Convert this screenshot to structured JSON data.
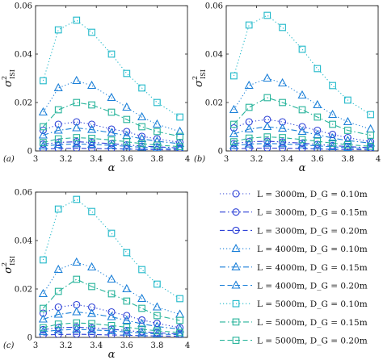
{
  "colors": {
    "blue_dark": "#2b3fd6",
    "blue_mid": "#1a7fd8",
    "cyan": "#1fb8c9",
    "teal": "#26b39a"
  },
  "legend": {
    "entries": [
      {
        "series": 0,
        "label": "L = 3000m, D_G = 0.10m"
      },
      {
        "series": 1,
        "label": "L = 3000m, D_G = 0.15m"
      },
      {
        "series": 2,
        "label": "L = 3000m, D_G = 0.20m"
      },
      {
        "series": 3,
        "label": "L = 4000m, D_G = 0.10m"
      },
      {
        "series": 4,
        "label": "L = 4000m, D_G = 0.15m"
      },
      {
        "series": 5,
        "label": "L = 4000m, D_G = 0.20m"
      },
      {
        "series": 6,
        "label": "L = 5000m, D_G = 0.10m"
      },
      {
        "series": 7,
        "label": "L = 5000m, D_G = 0.15m"
      },
      {
        "series": 8,
        "label": "L = 5000m, D_G = 0.20m"
      }
    ]
  },
  "chart_data": [
    {
      "type": "line",
      "panel_label": "(a)",
      "xlabel": "α",
      "ylabel": "σ²_ISI",
      "xlim": [
        3,
        4
      ],
      "ylim": [
        0,
        0.06
      ],
      "xticks": [
        "3",
        "3.2",
        "3.4",
        "3.6",
        "3.8",
        "4"
      ],
      "yticks": [
        "0",
        "0.02",
        "0.04",
        "0.06"
      ],
      "x": [
        3.05,
        3.15,
        3.27,
        3.37,
        3.5,
        3.6,
        3.7,
        3.8,
        3.95
      ],
      "series": [
        {
          "name": "L = 3000m, D_G = 0.10m",
          "marker": "circle",
          "dash": "dotted",
          "color": "#2b3fd6",
          "values": [
            0.0085,
            0.011,
            0.012,
            0.011,
            0.009,
            0.008,
            0.006,
            0.005,
            0.0035
          ]
        },
        {
          "name": "L = 3000m, D_G = 0.15m",
          "marker": "circle",
          "dash": "dashdot",
          "color": "#2b3fd6",
          "values": [
            0.0028,
            0.0035,
            0.0038,
            0.0035,
            0.003,
            0.0025,
            0.002,
            0.0017,
            0.0012
          ]
        },
        {
          "name": "L = 3000m, D_G = 0.20m",
          "marker": "circle",
          "dash": "dashed",
          "color": "#2b3fd6",
          "values": [
            0.0008,
            0.001,
            0.0011,
            0.001,
            0.0009,
            0.0008,
            0.0006,
            0.0005,
            0.0004
          ]
        },
        {
          "name": "L = 4000m, D_G = 0.10m",
          "marker": "triangle",
          "dash": "dotted",
          "color": "#1a7fd8",
          "values": [
            0.016,
            0.026,
            0.029,
            0.027,
            0.022,
            0.018,
            0.014,
            0.011,
            0.008
          ]
        },
        {
          "name": "L = 4000m, D_G = 0.15m",
          "marker": "triangle",
          "dash": "dashdot",
          "color": "#1a7fd8",
          "values": [
            0.0065,
            0.0085,
            0.0095,
            0.0088,
            0.0075,
            0.0063,
            0.005,
            0.004,
            0.003
          ]
        },
        {
          "name": "L = 4000m, D_G = 0.20m",
          "marker": "triangle",
          "dash": "dashed",
          "color": "#1a7fd8",
          "values": [
            0.002,
            0.0026,
            0.0029,
            0.0027,
            0.0023,
            0.0019,
            0.0015,
            0.0012,
            0.0009
          ]
        },
        {
          "name": "L = 5000m, D_G = 0.10m",
          "marker": "square",
          "dash": "dotted",
          "color": "#1fb8c9",
          "values": [
            0.029,
            0.05,
            0.054,
            0.049,
            0.04,
            0.032,
            0.026,
            0.02,
            0.014
          ]
        },
        {
          "name": "L = 5000m, D_G = 0.15m",
          "marker": "square",
          "dash": "dashdot",
          "color": "#26b39a",
          "values": [
            0.01,
            0.017,
            0.02,
            0.019,
            0.016,
            0.013,
            0.01,
            0.008,
            0.006
          ]
        },
        {
          "name": "L = 5000m, D_G = 0.20m",
          "marker": "square",
          "dash": "dashed",
          "color": "#26b39a",
          "values": [
            0.0035,
            0.005,
            0.0055,
            0.0052,
            0.0045,
            0.0038,
            0.003,
            0.0024,
            0.0018
          ]
        }
      ]
    },
    {
      "type": "line",
      "panel_label": "(b)",
      "xlabel": "α",
      "ylabel": "σ²_ISI",
      "xlim": [
        3,
        4
      ],
      "ylim": [
        0,
        0.06
      ],
      "xticks": [
        "3",
        "3.2",
        "3.4",
        "3.6",
        "3.8",
        "4"
      ],
      "yticks": [
        "0",
        "0.02",
        "0.04",
        "0.06"
      ],
      "x": [
        3.05,
        3.15,
        3.27,
        3.37,
        3.5,
        3.6,
        3.7,
        3.8,
        3.95
      ],
      "series": [
        {
          "name": "L = 3000m, D_G = 0.10m",
          "marker": "circle",
          "dash": "dotted",
          "color": "#2b3fd6",
          "values": [
            0.0095,
            0.012,
            0.013,
            0.012,
            0.01,
            0.0085,
            0.0068,
            0.0055,
            0.0038
          ]
        },
        {
          "name": "L = 3000m, D_G = 0.15m",
          "marker": "circle",
          "dash": "dashdot",
          "color": "#2b3fd6",
          "values": [
            0.003,
            0.0038,
            0.004,
            0.0037,
            0.0032,
            0.0027,
            0.0022,
            0.0018,
            0.0013
          ]
        },
        {
          "name": "L = 3000m, D_G = 0.20m",
          "marker": "circle",
          "dash": "dashed",
          "color": "#2b3fd6",
          "values": [
            0.0009,
            0.0011,
            0.0012,
            0.0011,
            0.001,
            0.0008,
            0.0007,
            0.0006,
            0.0004
          ]
        },
        {
          "name": "L = 4000m, D_G = 0.10m",
          "marker": "triangle",
          "dash": "dotted",
          "color": "#1a7fd8",
          "values": [
            0.017,
            0.027,
            0.03,
            0.028,
            0.023,
            0.019,
            0.015,
            0.012,
            0.009
          ]
        },
        {
          "name": "L = 4000m, D_G = 0.15m",
          "marker": "triangle",
          "dash": "dashdot",
          "color": "#1a7fd8",
          "values": [
            0.007,
            0.009,
            0.01,
            0.0093,
            0.008,
            0.0067,
            0.0053,
            0.0043,
            0.0032
          ]
        },
        {
          "name": "L = 4000m, D_G = 0.20m",
          "marker": "triangle",
          "dash": "dashed",
          "color": "#1a7fd8",
          "values": [
            0.0022,
            0.0028,
            0.0031,
            0.0029,
            0.0025,
            0.0021,
            0.0017,
            0.0013,
            0.001
          ]
        },
        {
          "name": "L = 5000m, D_G = 0.10m",
          "marker": "square",
          "dash": "dotted",
          "color": "#1fb8c9",
          "values": [
            0.031,
            0.052,
            0.056,
            0.051,
            0.042,
            0.034,
            0.027,
            0.021,
            0.015
          ]
        },
        {
          "name": "L = 5000m, D_G = 0.15m",
          "marker": "square",
          "dash": "dashdot",
          "color": "#26b39a",
          "values": [
            0.011,
            0.018,
            0.022,
            0.02,
            0.017,
            0.014,
            0.011,
            0.0085,
            0.0065
          ]
        },
        {
          "name": "L = 5000m, D_G = 0.20m",
          "marker": "square",
          "dash": "dashed",
          "color": "#26b39a",
          "values": [
            0.0038,
            0.0053,
            0.0058,
            0.0055,
            0.0047,
            0.004,
            0.0032,
            0.0026,
            0.0019
          ]
        }
      ]
    },
    {
      "type": "line",
      "panel_label": "(c)",
      "xlabel": "α",
      "ylabel": "σ²_ISI",
      "xlim": [
        3,
        4
      ],
      "ylim": [
        0,
        0.06
      ],
      "xticks": [
        "3",
        "3.2",
        "3.4",
        "3.6",
        "3.8",
        "4"
      ],
      "yticks": [
        "0",
        "0.02",
        "0.04",
        "0.06"
      ],
      "x": [
        3.05,
        3.15,
        3.27,
        3.37,
        3.5,
        3.6,
        3.7,
        3.8,
        3.95
      ],
      "series": [
        {
          "name": "L = 3000m, D_G = 0.10m",
          "marker": "circle",
          "dash": "dotted",
          "color": "#2b3fd6",
          "values": [
            0.01,
            0.0125,
            0.0135,
            0.0125,
            0.0105,
            0.009,
            0.0072,
            0.0058,
            0.004
          ]
        },
        {
          "name": "L = 3000m, D_G = 0.15m",
          "marker": "circle",
          "dash": "dashdot",
          "color": "#2b3fd6",
          "values": [
            0.0032,
            0.004,
            0.0042,
            0.0039,
            0.0034,
            0.0028,
            0.0023,
            0.0019,
            0.0014
          ]
        },
        {
          "name": "L = 3000m, D_G = 0.20m",
          "marker": "circle",
          "dash": "dashed",
          "color": "#2b3fd6",
          "values": [
            0.001,
            0.0012,
            0.0013,
            0.0012,
            0.001,
            0.0009,
            0.0007,
            0.0006,
            0.0005
          ]
        },
        {
          "name": "L = 4000m, D_G = 0.10m",
          "marker": "triangle",
          "dash": "dotted",
          "color": "#1a7fd8",
          "values": [
            0.018,
            0.028,
            0.031,
            0.029,
            0.024,
            0.02,
            0.016,
            0.0125,
            0.0095
          ]
        },
        {
          "name": "L = 4000m, D_G = 0.15m",
          "marker": "triangle",
          "dash": "dashdot",
          "color": "#1a7fd8",
          "values": [
            0.0075,
            0.0095,
            0.0105,
            0.0098,
            0.0085,
            0.007,
            0.0056,
            0.0045,
            0.0034
          ]
        },
        {
          "name": "L = 4000m, D_G = 0.20m",
          "marker": "triangle",
          "dash": "dashed",
          "color": "#1a7fd8",
          "values": [
            0.0024,
            0.003,
            0.0033,
            0.0031,
            0.0027,
            0.0022,
            0.0018,
            0.0014,
            0.0011
          ]
        },
        {
          "name": "L = 5000m, D_G = 0.10m",
          "marker": "square",
          "dash": "dotted",
          "color": "#1fb8c9",
          "values": [
            0.032,
            0.053,
            0.057,
            0.052,
            0.043,
            0.035,
            0.028,
            0.022,
            0.016
          ]
        },
        {
          "name": "L = 5000m, D_G = 0.15m",
          "marker": "square",
          "dash": "dashdot",
          "color": "#26b39a",
          "values": [
            0.012,
            0.019,
            0.024,
            0.021,
            0.018,
            0.015,
            0.012,
            0.009,
            0.007
          ]
        },
        {
          "name": "L = 5000m, D_G = 0.20m",
          "marker": "square",
          "dash": "dashed",
          "color": "#26b39a",
          "values": [
            0.004,
            0.0055,
            0.006,
            0.0057,
            0.0049,
            0.0042,
            0.0034,
            0.0027,
            0.002
          ]
        }
      ]
    }
  ]
}
